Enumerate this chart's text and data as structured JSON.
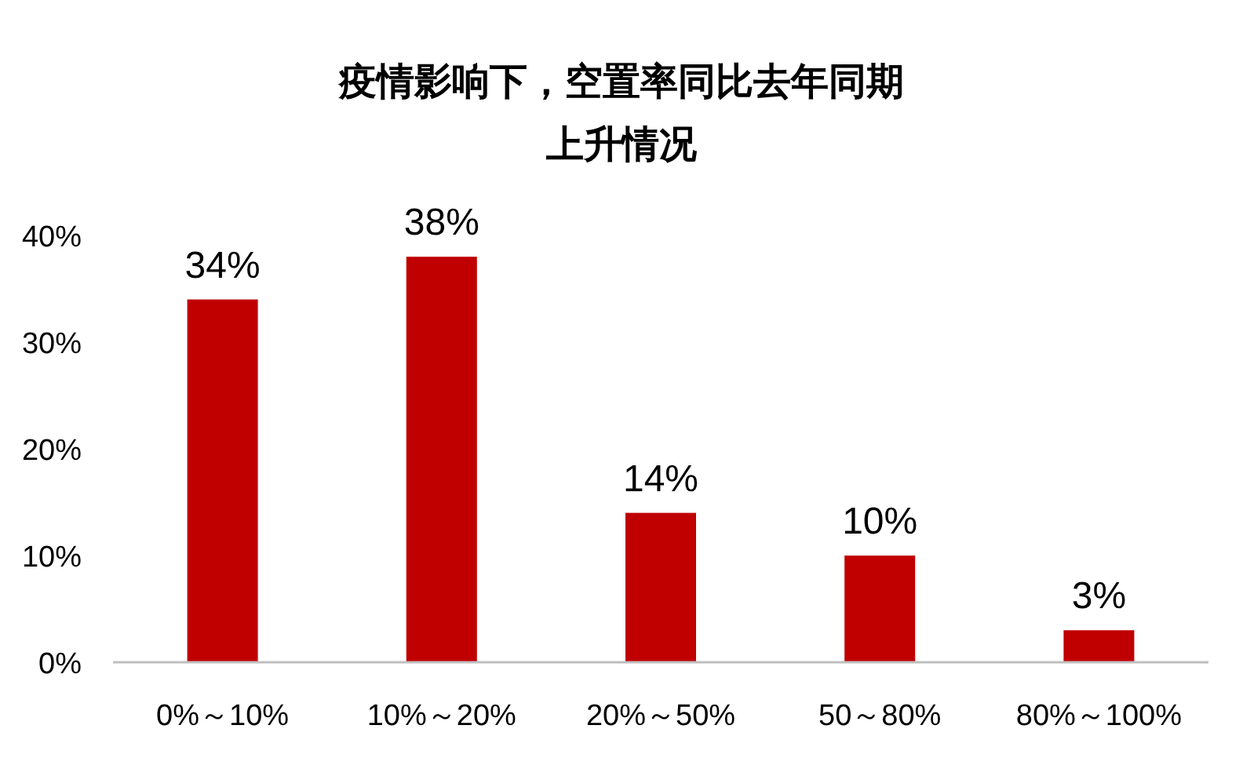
{
  "chart_data": {
    "type": "bar",
    "title": "疫情影响下，空置率同比去年同期",
    "subtitle": "上升情况",
    "categories": [
      "0%～10%",
      "10%～20%",
      "20%～50%",
      "50～80%",
      "80%～100%"
    ],
    "values": [
      34,
      38,
      14,
      10,
      3
    ],
    "value_labels": [
      "34%",
      "38%",
      "14%",
      "10%",
      "3%"
    ],
    "color": "#c00000",
    "ylim": [
      0,
      40
    ],
    "yticks": [
      {
        "value": 0,
        "label": "0%"
      },
      {
        "value": 10,
        "label": "10%"
      },
      {
        "value": 20,
        "label": "20%"
      },
      {
        "value": 30,
        "label": "30%"
      },
      {
        "value": 40,
        "label": "40%"
      }
    ]
  }
}
